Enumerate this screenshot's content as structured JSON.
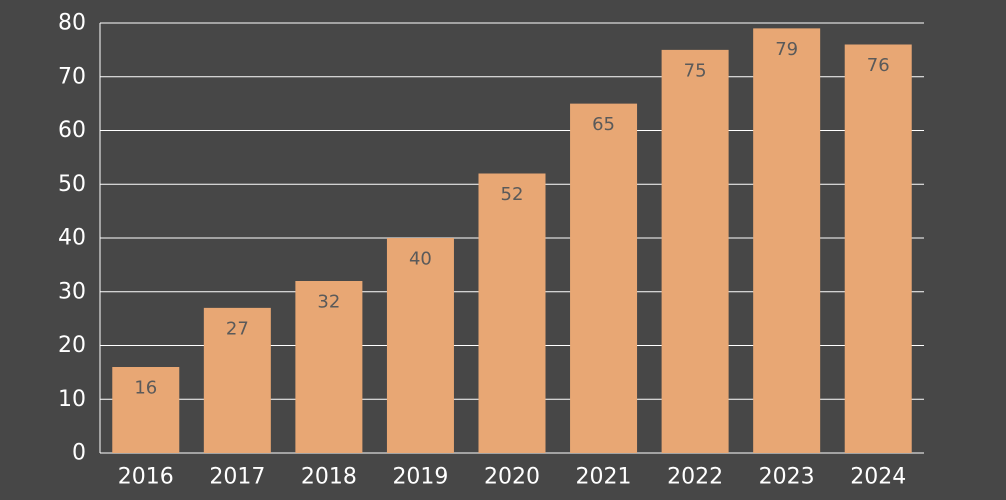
{
  "chart_data": {
    "type": "bar",
    "title": "",
    "xlabel": "",
    "ylabel": "",
    "categories": [
      "2016",
      "2017",
      "2018",
      "2019",
      "2020",
      "2021",
      "2022",
      "2023",
      "2024"
    ],
    "values": [
      16,
      27,
      32,
      40,
      52,
      65,
      75,
      79,
      76
    ],
    "ylim": [
      0,
      80
    ],
    "yticks": [
      0,
      10,
      20,
      30,
      40,
      50,
      60,
      70,
      80
    ],
    "grid": true,
    "legend": "none",
    "colors": {
      "background": "#474747",
      "bar": "#E8A774",
      "grid": "#ffffff",
      "tick_text": "#ffffff",
      "bar_label_text": "#5a5a5a"
    }
  }
}
